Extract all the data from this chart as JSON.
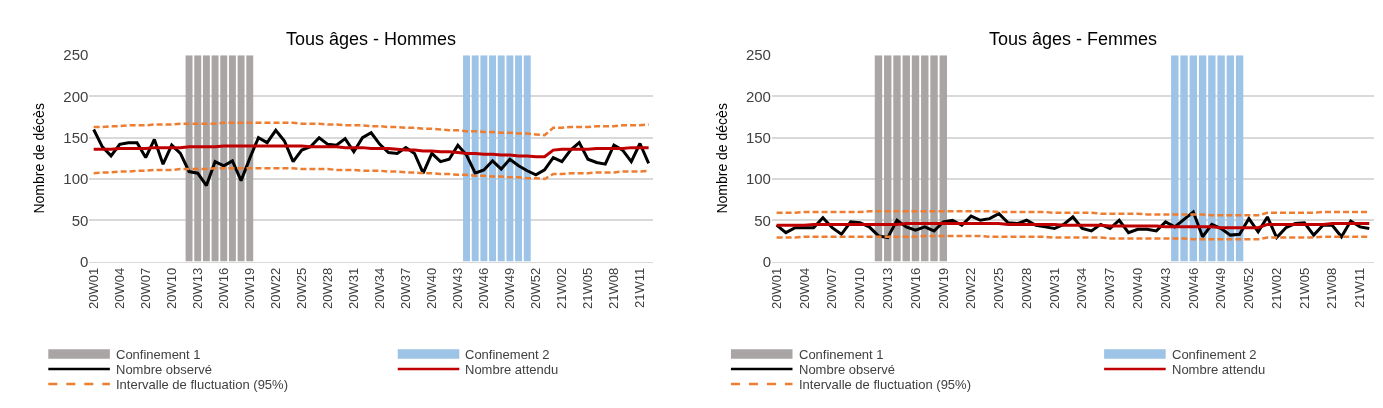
{
  "chart_data": [
    {
      "type": "line",
      "title": "Tous âges - Hommes",
      "ylabel": "Nombre de décès",
      "categories": [
        "20W01",
        null,
        null,
        "20W04",
        null,
        null,
        "20W07",
        null,
        null,
        "20W10",
        null,
        null,
        "20W13",
        null,
        null,
        "20W16",
        null,
        null,
        "20W19",
        null,
        null,
        "20W22",
        null,
        null,
        "20W25",
        null,
        null,
        "20W28",
        null,
        null,
        "20W31",
        null,
        null,
        "20W34",
        null,
        null,
        "20W37",
        null,
        null,
        "20W40",
        null,
        null,
        "20W43",
        null,
        null,
        "20W46",
        null,
        null,
        "20W49",
        null,
        null,
        "20W52",
        null,
        null,
        "21W02",
        null,
        null,
        "21W05",
        null,
        null,
        "21W08",
        null,
        null,
        "21W11",
        null
      ],
      "ylim": [
        0,
        250
      ],
      "yticks": [
        0,
        50,
        100,
        150,
        200,
        250
      ],
      "grid": "y",
      "legend": "bottom",
      "marker": "none",
      "series": [
        {
          "name": "Confinement 1",
          "type": "bar",
          "color": "#a9a5a5",
          "values": [
            null,
            null,
            null,
            null,
            null,
            null,
            null,
            null,
            null,
            null,
            null,
            250,
            250,
            250,
            250,
            250,
            250,
            250,
            250,
            null,
            null,
            null,
            null,
            null,
            null,
            null,
            null,
            null,
            null,
            null,
            null,
            null,
            null,
            null,
            null,
            null,
            null,
            null,
            null,
            null,
            null,
            null,
            null,
            null,
            null,
            null,
            null,
            null,
            null,
            null,
            null,
            null,
            null,
            null,
            null,
            null,
            null,
            null,
            null,
            null,
            null,
            null,
            null,
            null,
            null
          ]
        },
        {
          "name": "Confinement 2",
          "type": "bar",
          "color": "#9dc3e6",
          "values": [
            null,
            null,
            null,
            null,
            null,
            null,
            null,
            null,
            null,
            null,
            null,
            null,
            null,
            null,
            null,
            null,
            null,
            null,
            null,
            null,
            null,
            null,
            null,
            null,
            null,
            null,
            null,
            null,
            null,
            null,
            null,
            null,
            null,
            null,
            null,
            null,
            null,
            null,
            null,
            null,
            null,
            null,
            null,
            250,
            250,
            250,
            250,
            250,
            250,
            250,
            250,
            null,
            null,
            null,
            null,
            null,
            null,
            null,
            null,
            null,
            null,
            null,
            null,
            null,
            null
          ]
        },
        {
          "name": "Nombre observé",
          "color": "#000000",
          "line_style": "solid",
          "values": [
            160,
            139,
            128,
            142,
            144,
            144,
            126,
            148,
            118,
            141,
            131,
            109,
            107,
            92,
            121,
            116,
            122,
            98,
            125,
            150,
            144,
            159,
            146,
            121,
            135,
            139,
            150,
            142,
            141,
            149,
            133,
            150,
            156,
            142,
            132,
            131,
            138,
            131,
            107,
            131,
            121,
            124,
            141,
            129,
            107,
            111,
            122,
            112,
            124,
            116,
            110,
            105,
            111,
            126,
            121,
            135,
            144,
            124,
            120,
            118,
            141,
            135,
            121,
            143,
            119
          ]
        },
        {
          "name": "Nombre attendu",
          "color": "#c00000",
          "line_style": "solid",
          "values": [
            136,
            136,
            136,
            137,
            137,
            137,
            137,
            138,
            138,
            138,
            138,
            139,
            139,
            139,
            139,
            140,
            140,
            140,
            140,
            140,
            140,
            140,
            140,
            140,
            140,
            139,
            139,
            139,
            139,
            138,
            138,
            138,
            137,
            137,
            137,
            136,
            135,
            135,
            134,
            134,
            133,
            133,
            132,
            131,
            131,
            130,
            130,
            129,
            129,
            128,
            128,
            127,
            127,
            135,
            136,
            136,
            136,
            136,
            137,
            137,
            137,
            137,
            138,
            138,
            138
          ]
        },
        {
          "name": "Intervalle de fluctuation (95%)",
          "color": "#ed7d31",
          "line_style": "dashed",
          "values": [
            163,
            163,
            164,
            164,
            165,
            165,
            165,
            166,
            166,
            166,
            167,
            167,
            167,
            167,
            167,
            168,
            168,
            168,
            168,
            168,
            168,
            168,
            168,
            168,
            167,
            167,
            167,
            166,
            166,
            165,
            165,
            165,
            164,
            164,
            163,
            163,
            162,
            162,
            161,
            161,
            160,
            159,
            159,
            158,
            158,
            157,
            157,
            156,
            156,
            155,
            155,
            154,
            153,
            162,
            162,
            163,
            163,
            163,
            164,
            164,
            164,
            165,
            165,
            165,
            166
          ]
        },
        {
          "color": "#ed7d31",
          "line_style": "dashed",
          "values": [
            107,
            108,
            108,
            109,
            109,
            110,
            110,
            111,
            111,
            111,
            112,
            112,
            112,
            112,
            113,
            113,
            113,
            113,
            113,
            113,
            113,
            113,
            113,
            113,
            112,
            112,
            112,
            112,
            111,
            111,
            111,
            110,
            110,
            110,
            109,
            109,
            108,
            108,
            107,
            107,
            106,
            106,
            105,
            105,
            104,
            104,
            103,
            103,
            102,
            102,
            101,
            101,
            100,
            106,
            106,
            107,
            107,
            107,
            108,
            108,
            108,
            109,
            109,
            109,
            110
          ]
        }
      ]
    },
    {
      "type": "line",
      "title": "Tous âges - Femmes",
      "ylabel": "Nombre de décès",
      "categories": [
        "20W01",
        null,
        null,
        "20W04",
        null,
        null,
        "20W07",
        null,
        null,
        "20W10",
        null,
        null,
        "20W13",
        null,
        null,
        "20W16",
        null,
        null,
        "20W19",
        null,
        null,
        "20W22",
        null,
        null,
        "20W25",
        null,
        null,
        "20W28",
        null,
        null,
        "20W31",
        null,
        null,
        "20W34",
        null,
        null,
        "20W37",
        null,
        null,
        "20W40",
        null,
        null,
        "20W43",
        null,
        null,
        "20W46",
        null,
        null,
        "20W49",
        null,
        null,
        "20W52",
        null,
        null,
        "21W02",
        null,
        null,
        "21W05",
        null,
        null,
        "21W08",
        null,
        null,
        "21W11",
        null
      ],
      "ylim": [
        0,
        250
      ],
      "yticks": [
        0,
        50,
        100,
        150,
        200,
        250
      ],
      "grid": "y",
      "legend": "bottom",
      "marker": "none",
      "series": [
        {
          "name": "Confinement 1",
          "type": "bar",
          "color": "#a9a5a5",
          "values": [
            null,
            null,
            null,
            null,
            null,
            null,
            null,
            null,
            null,
            null,
            null,
            250,
            250,
            250,
            250,
            250,
            250,
            250,
            250,
            null,
            null,
            null,
            null,
            null,
            null,
            null,
            null,
            null,
            null,
            null,
            null,
            null,
            null,
            null,
            null,
            null,
            null,
            null,
            null,
            null,
            null,
            null,
            null,
            null,
            null,
            null,
            null,
            null,
            null,
            null,
            null,
            null,
            null,
            null,
            null,
            null,
            null,
            null,
            null,
            null,
            null,
            null,
            null,
            null,
            null
          ]
        },
        {
          "name": "Confinement 2",
          "type": "bar",
          "color": "#9dc3e6",
          "values": [
            null,
            null,
            null,
            null,
            null,
            null,
            null,
            null,
            null,
            null,
            null,
            null,
            null,
            null,
            null,
            null,
            null,
            null,
            null,
            null,
            null,
            null,
            null,
            null,
            null,
            null,
            null,
            null,
            null,
            null,
            null,
            null,
            null,
            null,
            null,
            null,
            null,
            null,
            null,
            null,
            null,
            null,
            null,
            250,
            250,
            250,
            250,
            250,
            250,
            250,
            250,
            null,
            null,
            null,
            null,
            null,
            null,
            null,
            null,
            null,
            null,
            null,
            null,
            null,
            null
          ]
        },
        {
          "name": "Nombre observé",
          "color": "#000000",
          "line_style": "solid",
          "values": [
            44,
            35,
            41,
            41,
            41,
            53,
            41,
            33,
            48,
            47,
            42,
            31,
            29,
            50,
            42,
            38,
            42,
            37,
            48,
            50,
            44,
            55,
            50,
            52,
            58,
            47,
            46,
            50,
            44,
            42,
            40,
            45,
            54,
            40,
            37,
            45,
            40,
            50,
            35,
            39,
            39,
            37,
            48,
            42,
            51,
            60,
            30,
            45,
            40,
            32,
            33,
            52,
            36,
            54,
            29,
            41,
            46,
            47,
            32,
            44,
            44,
            30,
            49,
            42,
            40
          ]
        },
        {
          "name": "Nombre attendu",
          "color": "#c00000",
          "line_style": "solid",
          "values": [
            44,
            44,
            44,
            44,
            45,
            45,
            45,
            45,
            45,
            45,
            45,
            45,
            45,
            45,
            46,
            46,
            46,
            46,
            46,
            46,
            46,
            46,
            46,
            46,
            46,
            45,
            45,
            45,
            45,
            45,
            45,
            44,
            44,
            44,
            44,
            44,
            43,
            43,
            43,
            43,
            43,
            43,
            42,
            42,
            42,
            42,
            42,
            42,
            41,
            41,
            41,
            41,
            41,
            45,
            45,
            45,
            45,
            45,
            45,
            45,
            46,
            46,
            46,
            46,
            46
          ]
        },
        {
          "name": "Intervalle de fluctuation (95%)",
          "color": "#ed7d31",
          "line_style": "dashed",
          "values": [
            59,
            59,
            59,
            60,
            60,
            60,
            60,
            60,
            60,
            60,
            61,
            61,
            61,
            61,
            61,
            61,
            61,
            61,
            61,
            61,
            61,
            61,
            61,
            61,
            60,
            60,
            60,
            60,
            60,
            60,
            59,
            59,
            59,
            59,
            59,
            58,
            58,
            58,
            58,
            58,
            57,
            57,
            57,
            57,
            57,
            57,
            57,
            56,
            56,
            56,
            56,
            56,
            56,
            59,
            59,
            59,
            59,
            59,
            59,
            60,
            60,
            60,
            60,
            60,
            60
          ]
        },
        {
          "color": "#ed7d31",
          "line_style": "dashed",
          "values": [
            29,
            29,
            29,
            30,
            30,
            30,
            30,
            30,
            30,
            30,
            30,
            30,
            30,
            30,
            30,
            30,
            31,
            31,
            31,
            31,
            31,
            31,
            31,
            30,
            30,
            30,
            30,
            30,
            30,
            30,
            29,
            29,
            29,
            29,
            29,
            29,
            28,
            28,
            28,
            28,
            28,
            28,
            28,
            28,
            28,
            27,
            27,
            27,
            27,
            27,
            27,
            27,
            27,
            29,
            29,
            29,
            29,
            29,
            29,
            30,
            30,
            30,
            30,
            30,
            30
          ]
        }
      ]
    }
  ]
}
